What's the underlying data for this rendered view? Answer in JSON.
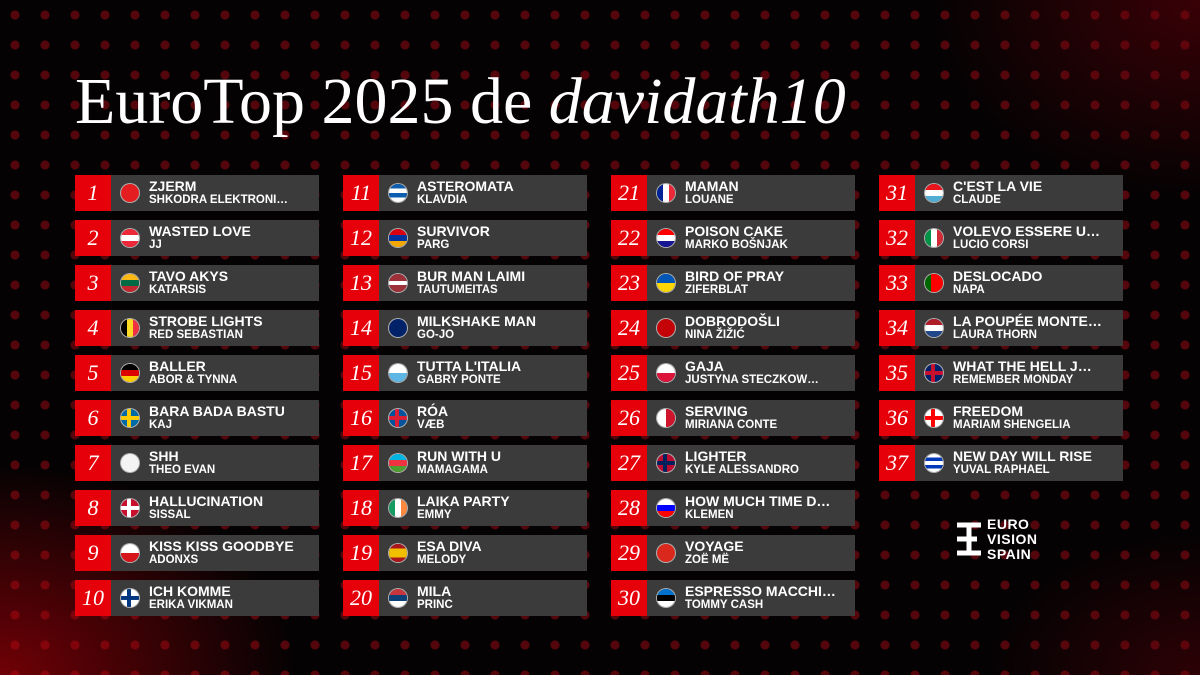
{
  "title": {
    "main": "EuroTop 2025 de",
    "user": "davidath10"
  },
  "entries": [
    {
      "rank": 1,
      "song": "ZJERM",
      "artist": "SHKODRA ELEKTRONI…"
    },
    {
      "rank": 2,
      "song": "WASTED LOVE",
      "artist": "JJ"
    },
    {
      "rank": 3,
      "song": "TAVO AKYS",
      "artist": "KATARSIS"
    },
    {
      "rank": 4,
      "song": "STROBE LIGHTS",
      "artist": "RED SEBASTIAN"
    },
    {
      "rank": 5,
      "song": "BALLER",
      "artist": "ABOR & TYNNA"
    },
    {
      "rank": 6,
      "song": "BARA BADA BASTU",
      "artist": "KAJ"
    },
    {
      "rank": 7,
      "song": "SHH",
      "artist": "THEO EVAN"
    },
    {
      "rank": 8,
      "song": "HALLUCINATION",
      "artist": "SISSAL"
    },
    {
      "rank": 9,
      "song": "KISS KISS GOODBYE",
      "artist": "ADONXS"
    },
    {
      "rank": 10,
      "song": "ICH KOMME",
      "artist": "ERIKA VIKMAN"
    },
    {
      "rank": 11,
      "song": "ASTEROMATA",
      "artist": "KLAVDIA"
    },
    {
      "rank": 12,
      "song": "SURVIVOR",
      "artist": "PARG"
    },
    {
      "rank": 13,
      "song": "BUR MAN LAIMI",
      "artist": "TAUTUMEITAS"
    },
    {
      "rank": 14,
      "song": "MILKSHAKE MAN",
      "artist": "GO-JO"
    },
    {
      "rank": 15,
      "song": "TUTTA L'ITALIA",
      "artist": "GABRY PONTE"
    },
    {
      "rank": 16,
      "song": "RÓA",
      "artist": "VÆB"
    },
    {
      "rank": 17,
      "song": "RUN WITH U",
      "artist": "MAMAGAMA"
    },
    {
      "rank": 18,
      "song": "LAIKA PARTY",
      "artist": "EMMY"
    },
    {
      "rank": 19,
      "song": "ESA DIVA",
      "artist": "MELODY"
    },
    {
      "rank": 20,
      "song": "MILA",
      "artist": "PRINC"
    },
    {
      "rank": 21,
      "song": "MAMAN",
      "artist": "LOUANE"
    },
    {
      "rank": 22,
      "song": "POISON CAKE",
      "artist": "MARKO BOŠNJAK"
    },
    {
      "rank": 23,
      "song": "BIRD OF PRAY",
      "artist": "ZIFERBLAT"
    },
    {
      "rank": 24,
      "song": "DOBRODOŠLI",
      "artist": "NINA ŽIŽIĆ"
    },
    {
      "rank": 25,
      "song": "GAJA",
      "artist": "JUSTYNA STECZKOW…"
    },
    {
      "rank": 26,
      "song": "SERVING",
      "artist": "MIRIANA CONTE"
    },
    {
      "rank": 27,
      "song": "LIGHTER",
      "artist": "KYLE ALESSANDRO"
    },
    {
      "rank": 28,
      "song": "HOW MUCH TIME D…",
      "artist": "KLEMEN"
    },
    {
      "rank": 29,
      "song": "VOYAGE",
      "artist": "ZOË MË"
    },
    {
      "rank": 30,
      "song": "ESPRESSO MACCHI…",
      "artist": "TOMMY CASH"
    },
    {
      "rank": 31,
      "song": "C'EST LA VIE",
      "artist": "CLAUDE"
    },
    {
      "rank": 32,
      "song": "VOLEVO ESSERE U…",
      "artist": "LUCIO CORSI"
    },
    {
      "rank": 33,
      "song": "DESLOCADO",
      "artist": "NAPA"
    },
    {
      "rank": 34,
      "song": "LA POUPÉE MONTE…",
      "artist": "LAURA THORN"
    },
    {
      "rank": 35,
      "song": "WHAT THE HELL J…",
      "artist": "REMEMBER MONDAY"
    },
    {
      "rank": 36,
      "song": "FREEDOM",
      "artist": "MARIAM SHENGELIA"
    },
    {
      "rank": 37,
      "song": "NEW DAY WILL RISE",
      "artist": "YUVAL RAPHAEL"
    }
  ],
  "logo": [
    "EURO",
    "VISION",
    "SPAIN"
  ]
}
